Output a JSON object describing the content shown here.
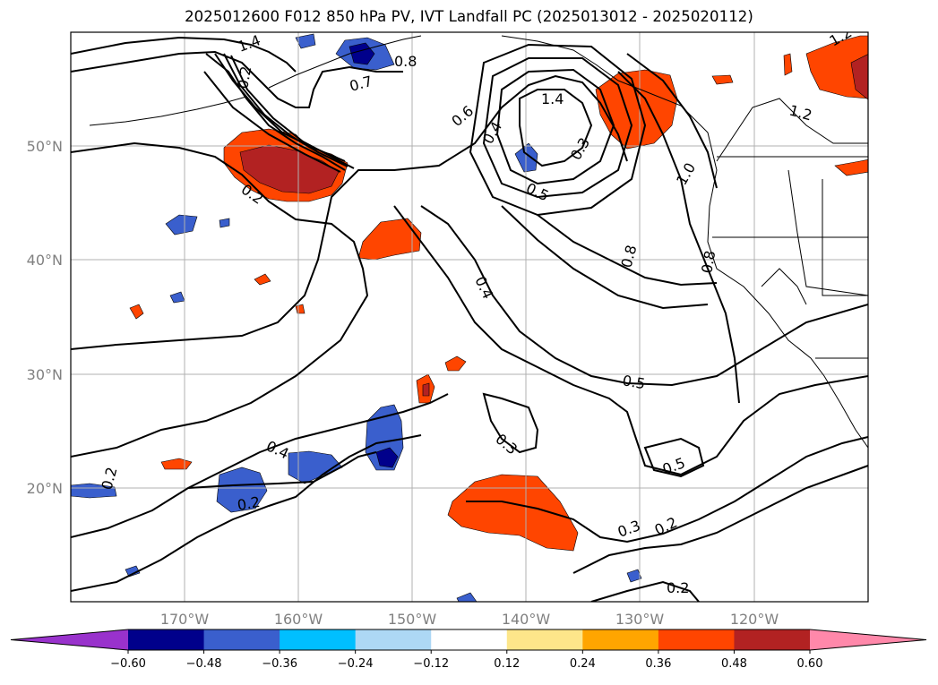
{
  "title": "2025012600 F012 850 hPa PV, IVT Landfall PC (2025013012 - 2025020112)",
  "map": {
    "lon_range": [
      -180,
      -110
    ],
    "lat_range": [
      10,
      60
    ],
    "lon_ticks": [
      "170°W",
      "160°W",
      "150°W",
      "140°W",
      "130°W",
      "120°W"
    ],
    "lat_ticks": [
      "50°N",
      "40°N",
      "30°N",
      "20°N"
    ],
    "contour_labels": [
      "1.4",
      "1.2",
      "0.8",
      "0.7",
      "0.2",
      "0.2",
      "0.6",
      "0.4",
      "0.5",
      "0.3",
      "1.4",
      "1.0",
      "1.2",
      "0.8",
      "0.8",
      "0.4",
      "0.5",
      "0.3",
      "0.5",
      "0.4",
      "0.2",
      "0.2",
      "0.3",
      "0.2",
      "0.2"
    ]
  },
  "colorbar": {
    "ticks": [
      "−0.60",
      "−0.48",
      "−0.36",
      "−0.24",
      "−0.12",
      "0.12",
      "0.24",
      "0.36",
      "0.48",
      "0.60"
    ],
    "colors": [
      "#9932cc",
      "#00008b",
      "#3a5fcd",
      "#00bfff",
      "#add8f5",
      "#ffffff",
      "#fde68a",
      "#ffa500",
      "#ff4500",
      "#b22222",
      "#ff88aa"
    ]
  }
}
